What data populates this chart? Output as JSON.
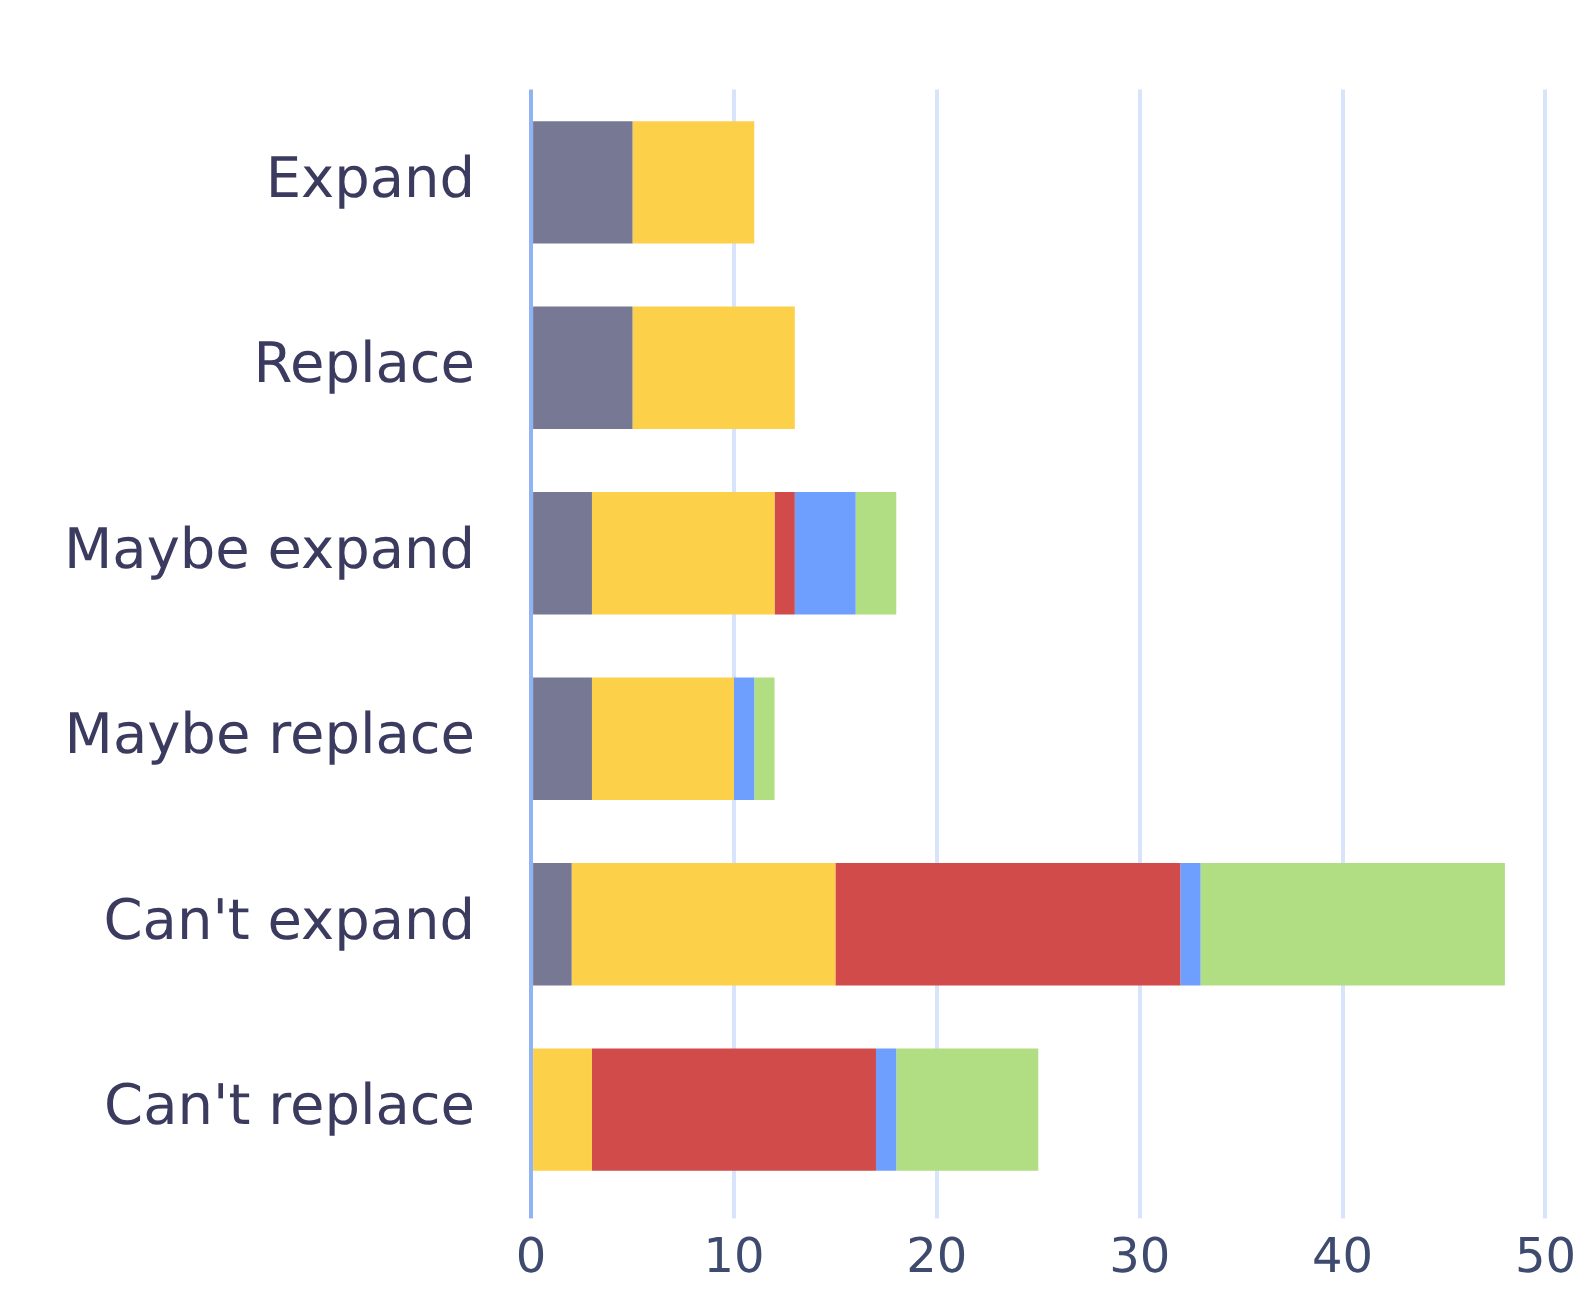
{
  "chart_data": {
    "type": "bar",
    "orientation": "horizontal",
    "stacked": true,
    "categories": [
      "Expand",
      "Replace",
      "Maybe expand",
      "Maybe replace",
      "Can't expand",
      "Can't replace"
    ],
    "series": [
      {
        "color": "#777994",
        "values": [
          5,
          5,
          3,
          3,
          2,
          0
        ]
      },
      {
        "color": "#fdd04a",
        "values": [
          6,
          8,
          9,
          7,
          13,
          3
        ]
      },
      {
        "color": "#d24b4b",
        "values": [
          0,
          0,
          1,
          0,
          17,
          14
        ]
      },
      {
        "color": "#6e9fff",
        "values": [
          0,
          0,
          3,
          1,
          1,
          1
        ]
      },
      {
        "color": "#b1de83",
        "values": [
          0,
          0,
          2,
          1,
          15,
          7
        ]
      }
    ],
    "xlim": [
      0,
      50
    ],
    "xticks": [
      0,
      10,
      20,
      30,
      40,
      50
    ],
    "grid": "x",
    "legend": false
  }
}
